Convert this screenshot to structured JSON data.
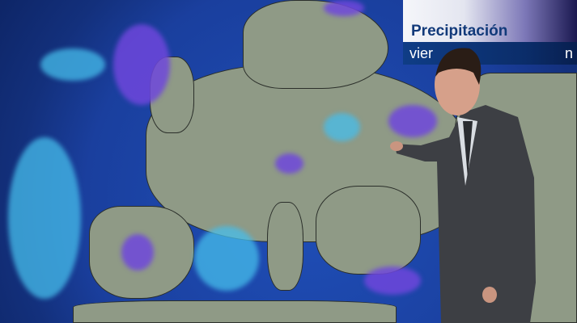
{
  "overlay": {
    "title": "Precipitación",
    "date_visible": "vier",
    "date_visible_end": "n"
  },
  "colors": {
    "ocean": "#1a3f9e",
    "land": "#8f9a86",
    "precip_light": "#46bee b",
    "precip_heavy": "#6e46dc",
    "title_text": "#123a7a",
    "date_bar": "#0f3d86"
  }
}
